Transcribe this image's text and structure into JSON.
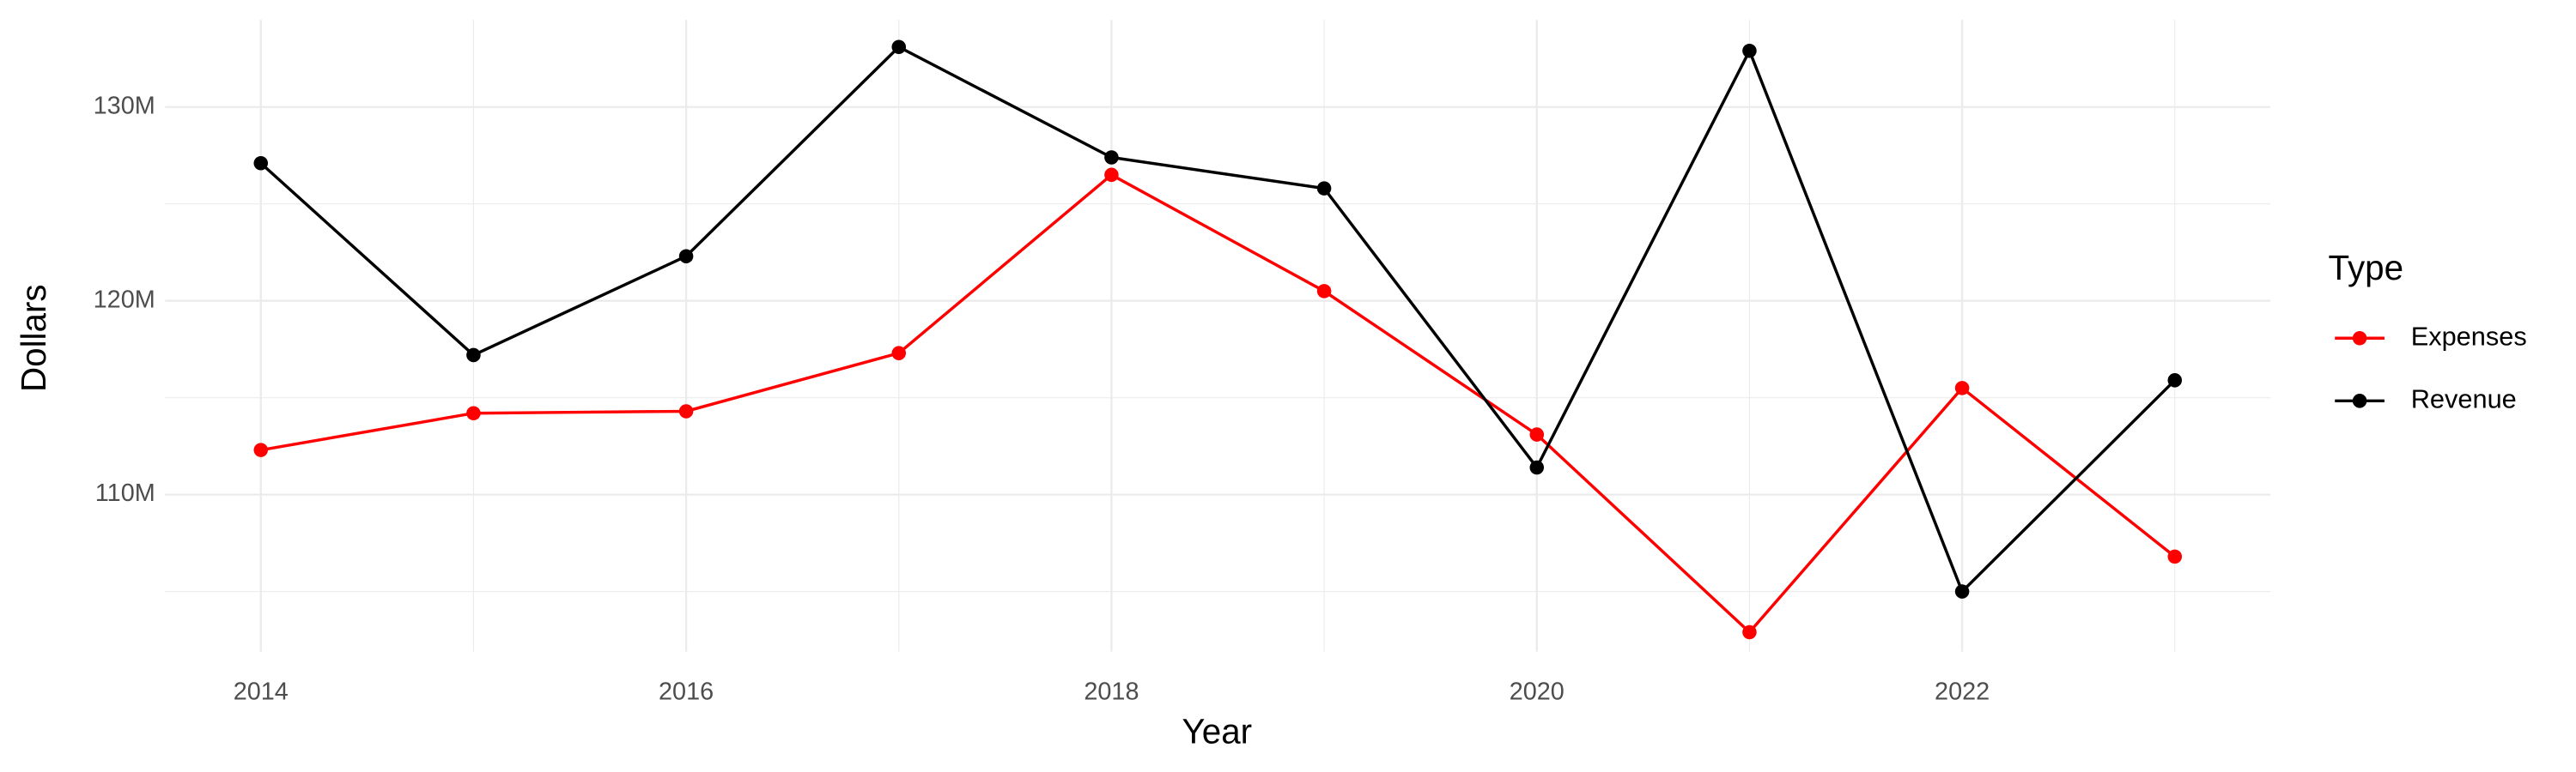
{
  "chart_data": {
    "type": "line",
    "x_label": "Year",
    "y_label": "Dollars",
    "legend_title": "Type",
    "legend_position": "right",
    "x": [
      2014,
      2015,
      2016,
      2017,
      2018,
      2019,
      2020,
      2021,
      2022,
      2023
    ],
    "series": [
      {
        "name": "Expenses",
        "color": "#ff0000",
        "values": [
          112300000,
          114200000,
          114300000,
          117300000,
          126500000,
          120500000,
          113100000,
          102900000,
          115500000,
          106800000
        ]
      },
      {
        "name": "Revenue",
        "color": "#000000",
        "values": [
          127100000,
          117200000,
          122300000,
          133100000,
          127400000,
          125800000,
          111400000,
          132900000,
          105000000,
          115900000
        ]
      }
    ],
    "xlim": [
      2013.55,
      2023.45
    ],
    "xticks": [
      2014,
      2016,
      2018,
      2020,
      2022
    ],
    "ylim": [
      101900000,
      134500000
    ],
    "yticks": [
      {
        "value": 110000000,
        "label": "110M"
      },
      {
        "value": 120000000,
        "label": "120M"
      },
      {
        "value": 130000000,
        "label": "130M"
      }
    ],
    "grid": true
  }
}
